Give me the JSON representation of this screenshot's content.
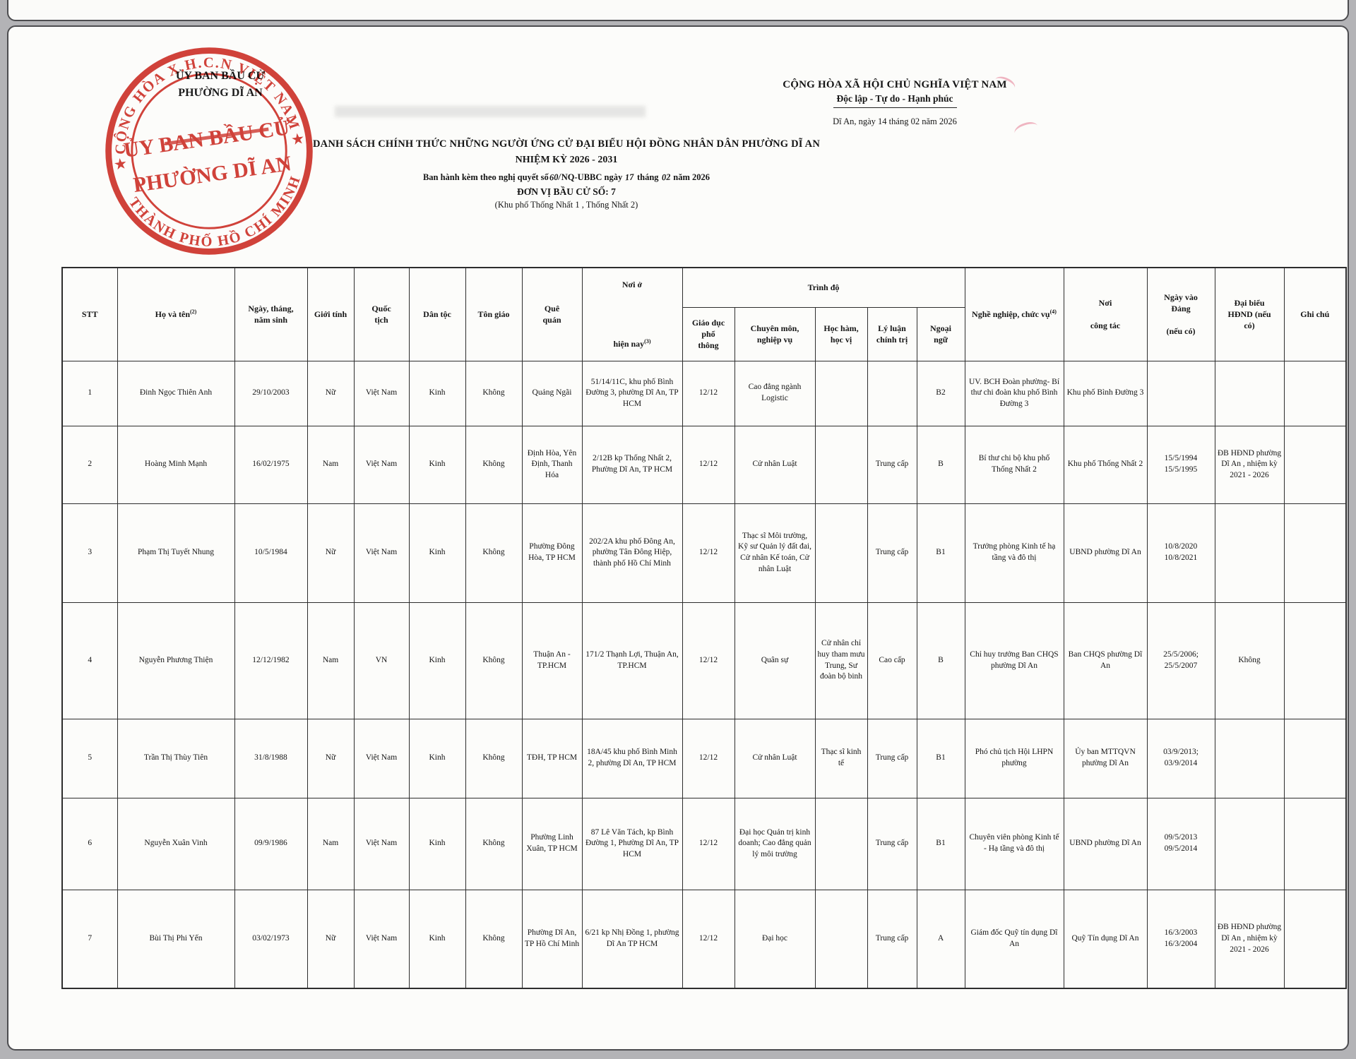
{
  "seal_color": "#d0342c",
  "stamp": {
    "outer_top": "CỘNG HÒA X.H.C.N VIỆT NAM",
    "outer_bottom": "THÀNH PHỐ HỒ CHÍ MINH",
    "star": "★",
    "inner1": "ỦY BAN BẦU CỬ",
    "inner2": "PHƯỜNG DĨ AN"
  },
  "letterhead": {
    "line1": "ỦY BAN BẦU CỬ",
    "line2": "PHƯỜNG DĨ AN"
  },
  "national": {
    "line1": "CỘNG HÒA XÃ HỘI CHỦ NGHĨA VIỆT NAM",
    "line2": "Độc lập - Tự do - Hạnh phúc",
    "date": "Dĩ An, ngày 14  tháng 02 năm 2026"
  },
  "title": {
    "line1": "DANH SÁCH CHÍNH THỨC NHỮNG NGƯỜI ỨNG CỬ ĐẠI BIỂU HỘI ĐỒNG NHÂN DÂN PHƯỜNG DĨ AN",
    "line2": "NHIỆM KỲ 2026 - 2031",
    "issue_prefix": "Ban hành kèm theo nghị quyết số",
    "issue_hw1": "60/",
    "issue_mid": "NQ-UBBC ngày ",
    "issue_hw2": "17",
    "issue_mid2": " tháng ",
    "issue_hw3": "02",
    "issue_suffix": " năm 2026",
    "unit_line": "ĐƠN VỊ BẦU CỬ SỐ: 7",
    "area_line": "(Khu phố Thống Nhất 1 ,  Thống Nhất 2)"
  },
  "table": {
    "header": {
      "stt": "STT",
      "name": "Họ và tên",
      "name_sup": "(2)",
      "dob": "Ngày, tháng,\nnăm sinh",
      "gender": "Giới tính",
      "nationality": "Quốc\ntịch",
      "ethnicity": "Dân tộc",
      "religion": "Tôn giáo",
      "hometown": "Quê\nquán",
      "residence_1": "Nơi ở",
      "residence_2": "hiện nay",
      "residence_sup": "(3)",
      "trinh_do": "Trình độ",
      "edu": "Giáo dục\nphổ\nthông",
      "professional": "Chuyên môn,\nnghiệp vụ",
      "degree": "Học hàm,\nhọc vị",
      "politics": "Lý luận\nchính trị",
      "language": "Ngoại\nngữ",
      "occupation": "Nghề nghiệp, chức vụ",
      "occupation_sup": "(4)",
      "workplace": "Nơi\n\ncông tác",
      "party_date": "Ngày vào\nĐảng\n\n(nếu có)",
      "council": "Đại biểu\nHĐND (nếu\ncó)",
      "notes": "Ghi chú"
    },
    "rows": [
      {
        "cells": [
          "1",
          "Đinh Ngọc Thiên Anh",
          "29/10/2003",
          "Nữ",
          "Việt Nam",
          "Kinh",
          "Không",
          "Quảng Ngãi",
          "51/14/11C, khu phố Bình Đường 3, phường Dĩ An, TP HCM",
          "12/12",
          "Cao đẳng ngành Logistic",
          "",
          "",
          "B2",
          "UV. BCH Đoàn phường- Bí thư chi đoàn khu phố Bình Đường 3",
          "Khu phố Bình Đường 3",
          "",
          "",
          ""
        ]
      },
      {
        "cells": [
          "2",
          "Hoàng Minh Mạnh",
          "16/02/1975",
          "Nam",
          "Việt Nam",
          "Kinh",
          "Không",
          "Định Hòa, Yên Định, Thanh Hóa",
          "2/12B kp Thống Nhất 2, Phường Dĩ An, TP HCM",
          "12/12",
          "Cử nhân Luật",
          "",
          "Trung cấp",
          "B",
          "Bí thư chi bộ khu phố Thống Nhất 2",
          "Khu phố Thống Nhất 2",
          "15/5/1994\n15/5/1995",
          "ĐB HĐND phường Dĩ An , nhiệm kỳ 2021 - 2026",
          ""
        ]
      },
      {
        "cells": [
          "3",
          "Phạm Thị Tuyết Nhung",
          "10/5/1984",
          "Nữ",
          "Việt Nam",
          "Kinh",
          "Không",
          "Phường Đông Hòa, TP HCM",
          "202/2A khu phố Đông An, phường Tân Đông Hiệp, thành phố Hồ Chí Minh",
          "12/12",
          "Thạc sĩ Môi trường, Kỹ sư Quản lý đất đai, Cử nhân Kế toán, Cử nhân Luật",
          "",
          "Trung cấp",
          "B1",
          "Trưởng phòng Kinh tế hạ tầng và đô thị",
          "UBND phường Dĩ An",
          "10/8/2020\n10/8/2021",
          "",
          ""
        ]
      },
      {
        "cells": [
          "4",
          "Nguyễn Phương Thiện",
          "12/12/1982",
          "Nam",
          "VN",
          "Kinh",
          "Không",
          "Thuận An - TP.HCM",
          "171/2 Thạnh Lợi, Thuận An, TP.HCM",
          "12/12",
          "Quân sự",
          "Cử nhân chỉ huy tham mưu Trung, Sư đoàn bộ binh",
          "Cao cấp",
          "B",
          "Chỉ huy trưởng Ban CHQS phường  Dĩ An",
          "Ban CHQS phường Dĩ An",
          "25/5/2006;\n25/5/2007",
          "Không",
          ""
        ]
      },
      {
        "cells": [
          "5",
          "Trần Thị Thùy Tiên",
          "31/8/1988",
          "Nữ",
          "Việt Nam",
          "Kinh",
          "Không",
          "TĐH, TP HCM",
          "18A/45 khu phố Bình Minh 2, phường Dĩ An, TP HCM",
          "12/12",
          "Cử nhân Luật",
          "Thạc sĩ kinh tế",
          "Trung cấp",
          "B1",
          "Phó chủ tịch Hội LHPN phường",
          "Ủy ban MTTQVN phường Dĩ An",
          "03/9/2013;\n03/9/2014",
          "",
          ""
        ]
      },
      {
        "cells": [
          "6",
          "Nguyễn Xuân Vinh",
          "09/9/1986",
          "Nam",
          "Việt Nam",
          "Kinh",
          "Không",
          "Phường Linh Xuân, TP HCM",
          "87 Lê Văn Tách, kp Bình Đường 1, Phường Dĩ An, TP HCM",
          "12/12",
          "Đại học Quản trị kinh doanh; Cao đẳng quản lý môi trường",
          "",
          "Trung cấp",
          "B1",
          "Chuyên viên phòng Kinh tế - Hạ tầng và đô thị",
          "UBND phường Dĩ An",
          "09/5/2013\n09/5/2014",
          "",
          ""
        ]
      },
      {
        "cells": [
          "7",
          "Bùi Thị Phi Yến",
          "03/02/1973",
          "Nữ",
          "Việt Nam",
          "Kinh",
          "Không",
          "Phường Dĩ An, TP Hồ Chí Minh",
          "6/21 kp Nhị Đồng 1, phường Dĩ An TP HCM",
          "12/12",
          "Đại học",
          "",
          "Trung cấp",
          "A",
          "Giám đốc Quỹ tín dụng Dĩ An",
          "Quỹ Tín dụng Dĩ An",
          "16/3/2003\n16/3/2004",
          "ĐB HĐND phường Dĩ An , nhiệm kỳ 2021 - 2026",
          ""
        ]
      }
    ]
  }
}
